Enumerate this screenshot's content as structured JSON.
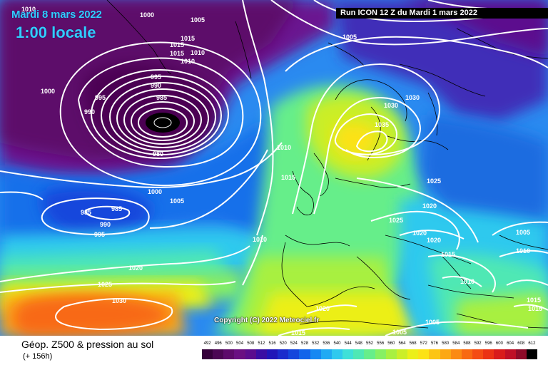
{
  "header": {
    "valid_date": "Mardi 8 mars 2022",
    "valid_time": "1:00 locale",
    "run_info": "Run ICON 12 Z du Mardi 1 mars 2022"
  },
  "map": {
    "copyright": "Copyright (C) 2022 Meteociel.fr",
    "isobar_labels": [
      "1010",
      "1005",
      "1015",
      "1015",
      "1015",
      "1010",
      "1010",
      "1000",
      "1000",
      "995",
      "990",
      "990",
      "995",
      "985",
      "980",
      "985",
      "985",
      "990",
      "995",
      "1000",
      "1005",
      "1010",
      "1015",
      "1010",
      "1020",
      "1025",
      "1030",
      "1030",
      "1030",
      "1035",
      "1025",
      "1020",
      "1025",
      "1020",
      "1020",
      "1015",
      "1005",
      "1010",
      "1010",
      "1015",
      "1015",
      "1020",
      "1015",
      "1005",
      "1005",
      "1005"
    ],
    "colors": {
      "isobar": "#ffffff",
      "coastline": "#000000",
      "low_core": "#000000"
    }
  },
  "footer": {
    "title": "Géop. Z500 & pression au sol",
    "subtitle": "(+ 156h)"
  },
  "legend": {
    "ticks": [
      "492",
      "496",
      "500",
      "504",
      "508",
      "512",
      "516",
      "520",
      "524",
      "528",
      "532",
      "536",
      "540",
      "544",
      "548",
      "552",
      "556",
      "560",
      "564",
      "568",
      "572",
      "576",
      "580",
      "584",
      "588",
      "592",
      "596",
      "600",
      "604",
      "608",
      "612"
    ],
    "colors": [
      "#35003a",
      "#4b0653",
      "#5d0a6b",
      "#6a0f82",
      "#5b0d8e",
      "#3a0ea3",
      "#2016b8",
      "#1a2ccc",
      "#1446dc",
      "#1264ea",
      "#1688f2",
      "#20aaf3",
      "#2fc9ee",
      "#3fe0d8",
      "#4fe8b4",
      "#66ee8a",
      "#86f063",
      "#a8f040",
      "#cbee28",
      "#ecef18",
      "#fce216",
      "#fcc514",
      "#fca814",
      "#fb8a13",
      "#f86912",
      "#f44c13",
      "#eb3214",
      "#d91b1b",
      "#bf0f26",
      "#8e0a28",
      "#000000"
    ]
  }
}
